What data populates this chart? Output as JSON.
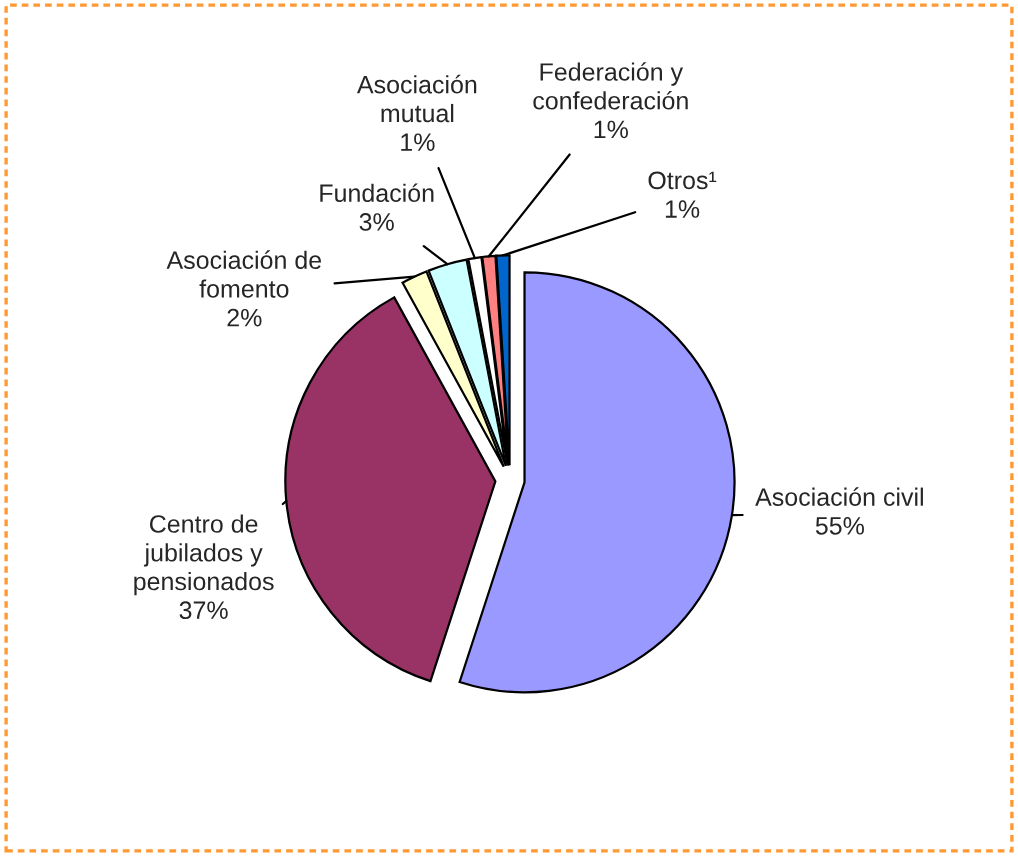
{
  "chart_data": {
    "type": "pie",
    "categories": [
      "Asociación civil",
      "Centro de\njubilados y\npensionados",
      "Asociación de\nfomento",
      "Fundación",
      "Asociación\nmutual",
      "Federación y\nconfederación",
      "Otros¹"
    ],
    "values": [
      55,
      37,
      2,
      3,
      1,
      1,
      1
    ],
    "colors": [
      "#9999ff",
      "#993366",
      "#ffffcc",
      "#ccffff",
      "#ffffff",
      "#ff8080",
      "#0066cc"
    ],
    "value_labels": [
      "55%",
      "37%",
      "2%",
      "3%",
      "1%",
      "1%",
      "1%"
    ],
    "legend": false
  }
}
